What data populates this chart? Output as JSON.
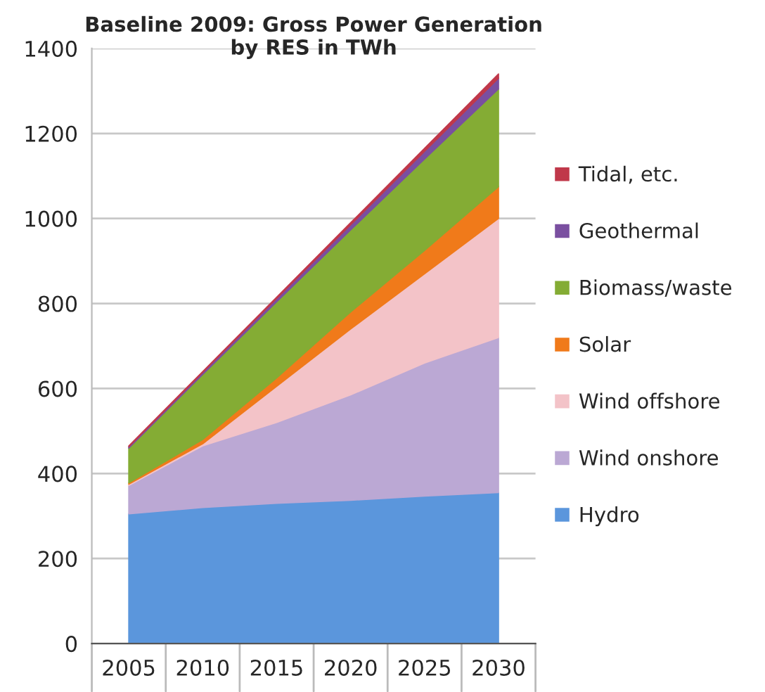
{
  "chart_data": {
    "type": "area",
    "stacked": true,
    "title": "Baseline 2009: Gross Power Generation\nby RES in TWh",
    "categories": [
      "2005",
      "2010",
      "2015",
      "2020",
      "2025",
      "2030"
    ],
    "series": [
      {
        "name": "Hydro",
        "color": "#5b96dc",
        "values": [
          305,
          320,
          330,
          337,
          347,
          355
        ]
      },
      {
        "name": "Wind onshore",
        "color": "#bba8d4",
        "values": [
          67,
          145,
          190,
          248,
          313,
          365
        ]
      },
      {
        "name": "Wind offshore",
        "color": "#f3c3c8",
        "values": [
          3,
          5,
          85,
          155,
          210,
          280
        ]
      },
      {
        "name": "Solar",
        "color": "#f07a1a",
        "values": [
          3,
          10,
          20,
          40,
          55,
          75
        ]
      },
      {
        "name": "Biomass/waste",
        "color": "#84ac34",
        "values": [
          82,
          153,
          179,
          193,
          215,
          230
        ]
      },
      {
        "name": "Geothermal",
        "color": "#7a4fa0",
        "values": [
          3,
          5,
          8,
          12,
          18,
          25
        ]
      },
      {
        "name": "Tidal, etc.",
        "color": "#c0384a",
        "values": [
          2,
          2,
          3,
          5,
          7,
          10
        ]
      }
    ],
    "ylim": [
      0,
      1400
    ],
    "yticks": [
      0,
      200,
      400,
      600,
      800,
      1000,
      1200,
      1400
    ],
    "grid": "y",
    "legend": "right"
  }
}
